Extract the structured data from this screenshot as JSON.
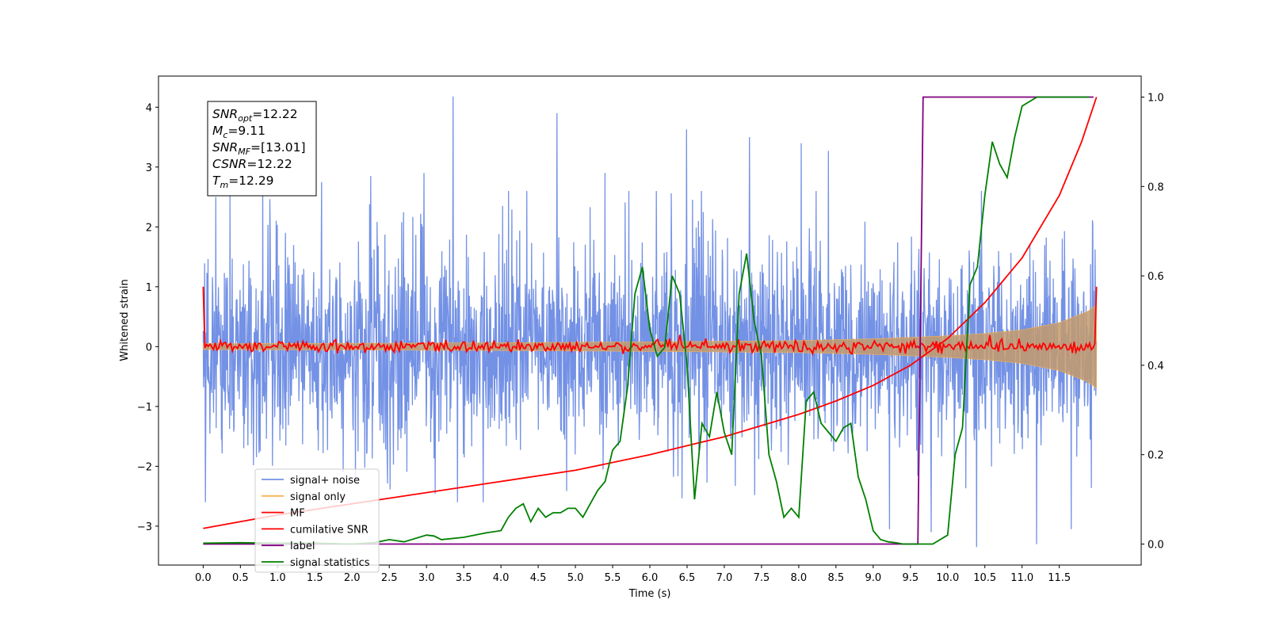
{
  "chart_data": {
    "type": "line",
    "xlabel": "Time (s)",
    "ylabel_left": "Whitened strain",
    "ylabel_right": "",
    "xlim": [
      -0.6,
      12.6
    ],
    "ylim_left": [
      -3.65,
      4.52
    ],
    "ylim_right": [
      -0.047,
      1.047
    ],
    "x_ticks": [
      0.0,
      0.5,
      1.0,
      1.5,
      2.0,
      2.5,
      3.0,
      3.5,
      4.0,
      4.5,
      5.0,
      5.5,
      6.0,
      6.5,
      7.0,
      7.5,
      8.0,
      8.5,
      9.0,
      9.5,
      10.0,
      10.5,
      11.0,
      11.5
    ],
    "x_tick_labels": [
      "0.0",
      "0.5",
      "1.0",
      "1.5",
      "2.0",
      "2.5",
      "3.0",
      "3.5",
      "4.0",
      "4.5",
      "5.0",
      "5.5",
      "6.0",
      "6.5",
      "7.0",
      "7.5",
      "8.0",
      "8.5",
      "9.0",
      "9.5",
      "10.0",
      "10.5",
      "11.0",
      "11.5"
    ],
    "y_ticks_left": [
      -3,
      -2,
      -1,
      0,
      1,
      2,
      3,
      4
    ],
    "y_tick_labels_left": [
      "−3",
      "−2",
      "−1",
      "0",
      "1",
      "2",
      "3",
      "4"
    ],
    "y_ticks_right": [
      0.0,
      0.2,
      0.4,
      0.6,
      0.8,
      1.0
    ],
    "y_tick_labels_right": [
      "0.0",
      "0.2",
      "0.4",
      "0.6",
      "0.8",
      "1.0"
    ],
    "grid": false,
    "legend_position": "lower-left",
    "annotation_box": {
      "position": "top-left",
      "lines": [
        {
          "sym": "SNR",
          "sub": "opt",
          "rest": "=12.22"
        },
        {
          "sym": "M",
          "sub": "c",
          "rest": "=9.11"
        },
        {
          "sym": "SNR",
          "sub": "MF",
          "rest": "=[13.01]"
        },
        {
          "sym": "CSNR",
          "sub": "",
          "rest": "=12.22"
        },
        {
          "sym": "T",
          "sub": "m",
          "rest": "=12.29"
        }
      ]
    },
    "series": [
      {
        "name": "signal+ noise",
        "axis": "left",
        "color": "#7391e5",
        "kind": "noise",
        "x_range": [
          0.0,
          12.0
        ],
        "std": 1.0,
        "peak_values": [
          2.5,
          2.9,
          2.75,
          2.85,
          2.9,
          4.18,
          2.6,
          3.9,
          2.9,
          2.6,
          3.63,
          3.5,
          3.4,
          3.27,
          -3.05,
          -3.1,
          -3.35,
          -3.3,
          -3.05
        ]
      },
      {
        "name": "signal only",
        "axis": "left",
        "color": "#f5b255",
        "kind": "chirp",
        "x": [
          0.0,
          2.0,
          4.0,
          6.0,
          7.0,
          8.0,
          9.0,
          10.0,
          10.5,
          11.0,
          11.5,
          11.9,
          12.0
        ],
        "amplitude": [
          0.05,
          0.055,
          0.065,
          0.08,
          0.09,
          0.1,
          0.13,
          0.18,
          0.22,
          0.28,
          0.4,
          0.6,
          0.7
        ]
      },
      {
        "name": "MF",
        "axis": "left",
        "color": "#ff0000",
        "kind": "noise",
        "x_range": [
          0.0,
          12.0
        ],
        "std": 0.05,
        "edge_values": [
          1.0,
          1.0
        ]
      },
      {
        "name": "cumilative SNR",
        "axis": "right",
        "color": "#ff0000",
        "x": [
          0.0,
          0.5,
          1.0,
          2.0,
          3.0,
          4.0,
          5.0,
          6.0,
          6.5,
          7.0,
          7.5,
          8.0,
          8.5,
          9.0,
          9.5,
          10.0,
          10.5,
          11.0,
          11.5,
          11.8,
          12.0
        ],
        "values": [
          0.035,
          0.05,
          0.065,
          0.09,
          0.115,
          0.14,
          0.165,
          0.2,
          0.22,
          0.24,
          0.265,
          0.29,
          0.32,
          0.355,
          0.4,
          0.46,
          0.54,
          0.64,
          0.78,
          0.9,
          1.0
        ]
      },
      {
        "name": "label",
        "axis": "right",
        "color": "#800080",
        "x": [
          0.0,
          9.6,
          9.67,
          11.96
        ],
        "values": [
          0.0,
          0.0,
          1.0,
          1.0
        ]
      },
      {
        "name": "signal statistics",
        "axis": "right",
        "color": "#008000",
        "x": [
          0.0,
          0.5,
          1.0,
          1.5,
          2.0,
          2.3,
          2.5,
          2.7,
          3.0,
          3.1,
          3.2,
          3.5,
          3.8,
          4.0,
          4.1,
          4.2,
          4.3,
          4.4,
          4.5,
          4.6,
          4.7,
          4.8,
          4.9,
          5.0,
          5.1,
          5.2,
          5.3,
          5.4,
          5.5,
          5.6,
          5.7,
          5.8,
          5.9,
          6.0,
          6.1,
          6.2,
          6.3,
          6.4,
          6.5,
          6.6,
          6.7,
          6.8,
          6.9,
          7.0,
          7.1,
          7.2,
          7.3,
          7.4,
          7.5,
          7.6,
          7.7,
          7.8,
          7.9,
          8.0,
          8.1,
          8.2,
          8.3,
          8.4,
          8.5,
          8.6,
          8.7,
          8.8,
          8.9,
          9.0,
          9.1,
          9.2,
          9.3,
          9.4,
          9.6,
          9.8,
          10.0,
          10.1,
          10.2,
          10.3,
          10.4,
          10.5,
          10.6,
          10.7,
          10.8,
          10.9,
          11.0,
          11.1,
          11.2,
          11.5,
          11.9
        ],
        "values": [
          0.002,
          0.003,
          0.002,
          0.002,
          0.0,
          0.003,
          0.01,
          0.005,
          0.02,
          0.018,
          0.01,
          0.015,
          0.025,
          0.03,
          0.06,
          0.08,
          0.09,
          0.05,
          0.08,
          0.06,
          0.07,
          0.07,
          0.08,
          0.08,
          0.06,
          0.09,
          0.12,
          0.14,
          0.21,
          0.23,
          0.35,
          0.56,
          0.62,
          0.48,
          0.42,
          0.44,
          0.6,
          0.56,
          0.4,
          0.1,
          0.27,
          0.24,
          0.34,
          0.25,
          0.2,
          0.56,
          0.65,
          0.5,
          0.42,
          0.2,
          0.14,
          0.06,
          0.08,
          0.06,
          0.32,
          0.34,
          0.27,
          0.25,
          0.23,
          0.26,
          0.27,
          0.15,
          0.1,
          0.03,
          0.01,
          0.005,
          0.003,
          0.0,
          0.0,
          0.0,
          0.02,
          0.2,
          0.26,
          0.58,
          0.62,
          0.78,
          0.9,
          0.85,
          0.82,
          0.91,
          0.98,
          0.99,
          1.0,
          1.0,
          1.0
        ]
      }
    ]
  }
}
